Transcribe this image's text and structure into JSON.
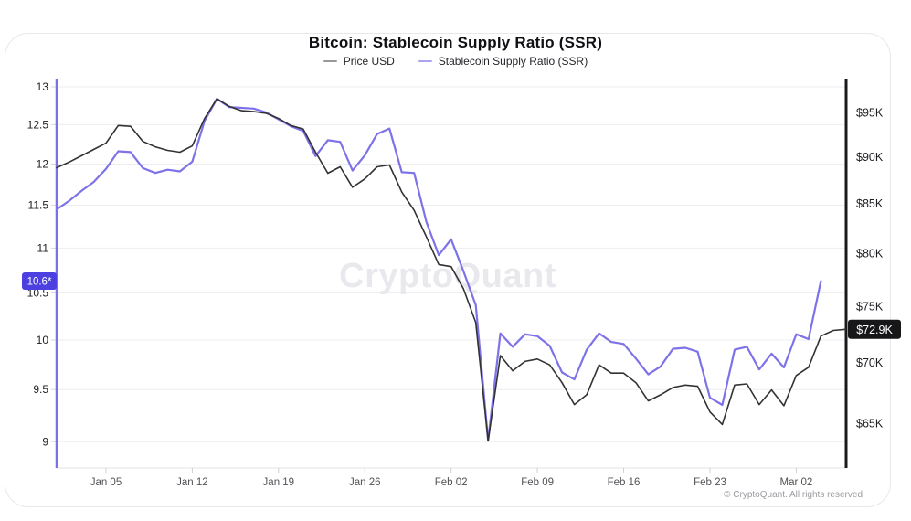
{
  "card": {
    "title": "Bitcoin: Stablecoin Supply Ratio (SSR)",
    "watermark": "CryptoQuant",
    "copyright": "© CryptoQuant. All rights reserved"
  },
  "legend": {
    "items": [
      {
        "label": "Price USD",
        "dash_color": "#98989c"
      },
      {
        "label": "Stablecoin Supply Ratio (SSR)",
        "dash_color": "#aba3f2"
      }
    ]
  },
  "chart_data": {
    "type": "line",
    "title": "Bitcoin: Stablecoin Supply Ratio (SSR)",
    "grid": "horizontal",
    "legend_position": "top",
    "x_tick_labels": [
      "Jan 05",
      "Jan 12",
      "Jan 19",
      "Jan 26",
      "Feb 02",
      "Feb 09",
      "Feb 16",
      "Feb 23",
      "Mar 02"
    ],
    "x_tick_day_indices": [
      4,
      11,
      18,
      25,
      32,
      39,
      46,
      53,
      60
    ],
    "left_axis": {
      "series": "Stablecoin Supply Ratio (SSR)",
      "scale": "log",
      "ticks": [
        13,
        12.5,
        12,
        11.5,
        11,
        10.5,
        10,
        9.5,
        9
      ],
      "ylim": [
        8.76,
        13.09
      ],
      "axis_color": "#7b70e5",
      "latest_badge": {
        "text": "10.6*",
        "value": 10.63,
        "bg": "#4c40e0",
        "fg": "#ffffff"
      }
    },
    "right_axis": {
      "series": "Price USD",
      "scale": "log",
      "tick_labels": [
        "$95K",
        "$90K",
        "$85K",
        "$80K",
        "$75K",
        "$70K",
        "$65K"
      ],
      "tick_values": [
        95,
        90,
        85,
        80,
        75,
        70,
        65
      ],
      "ylim": [
        61.5,
        98.8
      ],
      "axis_color": "#1a1a1c",
      "latest_badge": {
        "text": "$72.9K",
        "value": 72.9,
        "bg": "#17171a",
        "fg": "#ffffff"
      }
    },
    "series": [
      {
        "name": "Price USD",
        "axis": "right",
        "color": "#323234",
        "values": [
          88.8,
          89.4,
          90.1,
          90.8,
          91.5,
          93.5,
          93.4,
          91.7,
          91.1,
          90.7,
          90.5,
          91.2,
          94.3,
          96.6,
          95.7,
          95.2,
          95.1,
          94.9,
          94.3,
          93.5,
          93.1,
          90.5,
          88.2,
          88.9,
          86.7,
          87.6,
          88.9,
          89.1,
          86.2,
          84.3,
          81.6,
          78.9,
          78.7,
          76.6,
          73.5,
          63.6,
          70.6,
          69.3,
          70.1,
          70.3,
          69.8,
          68.3,
          66.5,
          67.3,
          69.8,
          69.1,
          69.1,
          68.3,
          66.8,
          67.3,
          67.9,
          68.1,
          68.0,
          65.9,
          64.9,
          68.1,
          68.2,
          66.5,
          67.7,
          66.4,
          68.9,
          69.6,
          72.3,
          72.8,
          72.9
        ]
      },
      {
        "name": "Stablecoin Supply Ratio (SSR)",
        "axis": "left",
        "color": "#7d72e8",
        "values": [
          11.45,
          11.55,
          11.67,
          11.78,
          11.94,
          12.16,
          12.15,
          11.95,
          11.89,
          11.93,
          11.91,
          12.03,
          12.55,
          12.84,
          12.73,
          12.72,
          12.71,
          12.66,
          12.57,
          12.48,
          12.42,
          12.1,
          12.3,
          12.28,
          11.92,
          12.11,
          12.38,
          12.45,
          11.9,
          11.89,
          11.3,
          10.92,
          11.1,
          10.74,
          10.37,
          9.01,
          10.07,
          9.93,
          10.06,
          10.04,
          9.94,
          9.67,
          9.6,
          9.9,
          10.07,
          9.98,
          9.96,
          9.81,
          9.65,
          9.73,
          9.91,
          9.92,
          9.88,
          9.42,
          9.35,
          9.9,
          9.93,
          9.7,
          9.86,
          9.72,
          10.06,
          10.01,
          10.63
        ]
      }
    ]
  }
}
